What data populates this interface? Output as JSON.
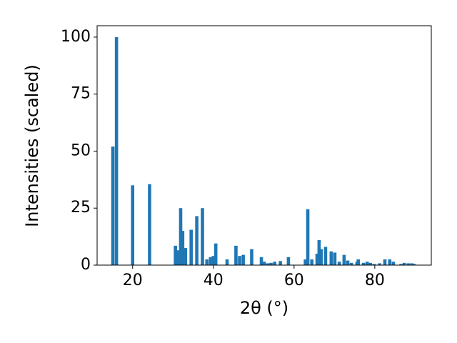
{
  "chart_data": {
    "type": "bar",
    "xlabel": "2θ (°)",
    "ylabel": "Intensities (scaled)",
    "x": [
      15.1,
      16.0,
      20.0,
      24.2,
      30.6,
      31.3,
      31.9,
      32.4,
      33.1,
      34.5,
      35.9,
      37.3,
      38.4,
      39.3,
      40.0,
      40.6,
      43.4,
      45.6,
      46.5,
      47.4,
      49.5,
      51.9,
      52.6,
      53.5,
      54.3,
      55.2,
      56.6,
      58.6,
      62.8,
      63.4,
      64.4,
      65.7,
      66.2,
      66.7,
      67.8,
      69.2,
      70.1,
      71.2,
      72.4,
      73.3,
      74.2,
      75.6,
      75.9,
      77.2,
      78.1,
      78.9,
      79.8,
      81.2,
      82.5,
      83.7,
      84.6,
      86.5,
      87.3,
      88.3,
      89.2,
      89.7
    ],
    "values": [
      52,
      100,
      35,
      35.5,
      8.5,
      6.5,
      25,
      15,
      7.5,
      15.5,
      21.5,
      25,
      2.5,
      3.5,
      4,
      9.5,
      2.5,
      8.5,
      4,
      4.5,
      7,
      3.5,
      1.5,
      0.8,
      1,
      1.5,
      1.8,
      3.5,
      2.5,
      24.5,
      2.5,
      5,
      11,
      7,
      8,
      6,
      5.5,
      1.5,
      4.5,
      2,
      1,
      1.5,
      2.5,
      1,
      1.5,
      1,
      0.5,
      0.8,
      2.5,
      2.5,
      1.5,
      0.5,
      1,
      0.8,
      0.8,
      0.5
    ],
    "color": "#1f77b4",
    "xlim": [
      11.2,
      94.0
    ],
    "xticks": [
      20,
      40,
      60,
      80
    ],
    "ylim": [
      0,
      105
    ],
    "yticks": [
      0,
      25,
      50,
      75,
      100
    ],
    "grid": false
  }
}
